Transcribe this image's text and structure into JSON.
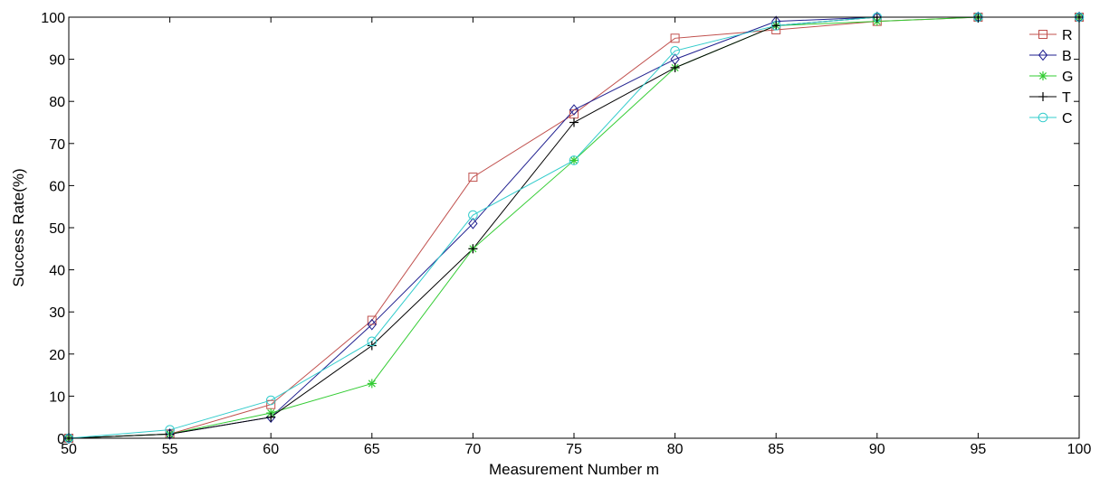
{
  "chart_data": {
    "type": "line",
    "title": "",
    "xlabel": "Measurement Number m",
    "ylabel": "Success Rate(%)",
    "x": [
      50,
      55,
      60,
      65,
      70,
      75,
      80,
      85,
      90,
      95,
      100
    ],
    "xlim": [
      50,
      100
    ],
    "ylim": [
      0,
      100
    ],
    "xticks": [
      50,
      55,
      60,
      65,
      70,
      75,
      80,
      85,
      90,
      95,
      100
    ],
    "yticks": [
      0,
      10,
      20,
      30,
      40,
      50,
      60,
      70,
      80,
      90,
      100
    ],
    "grid": false,
    "legend_position": "top-right",
    "series": [
      {
        "name": "R",
        "color": "#c0504d",
        "marker": "square",
        "values": [
          0,
          1,
          8,
          28,
          62,
          77,
          95,
          97,
          99,
          100,
          100
        ]
      },
      {
        "name": "B",
        "color": "#1f1f8f",
        "marker": "diamond",
        "values": [
          0,
          1,
          5,
          27,
          51,
          78,
          90,
          99,
          100,
          100,
          100
        ]
      },
      {
        "name": "G",
        "color": "#33cc33",
        "marker": "star",
        "values": [
          0,
          1,
          6,
          13,
          45,
          66,
          88,
          98,
          99,
          100,
          100
        ]
      },
      {
        "name": "T",
        "color": "#000000",
        "marker": "plus",
        "values": [
          0,
          1,
          5,
          22,
          45,
          75,
          88,
          98,
          100,
          100,
          100
        ]
      },
      {
        "name": "C",
        "color": "#33cccc",
        "marker": "circle",
        "values": [
          0,
          2,
          9,
          23,
          53,
          66,
          92,
          98,
          100,
          100,
          100
        ]
      }
    ]
  }
}
